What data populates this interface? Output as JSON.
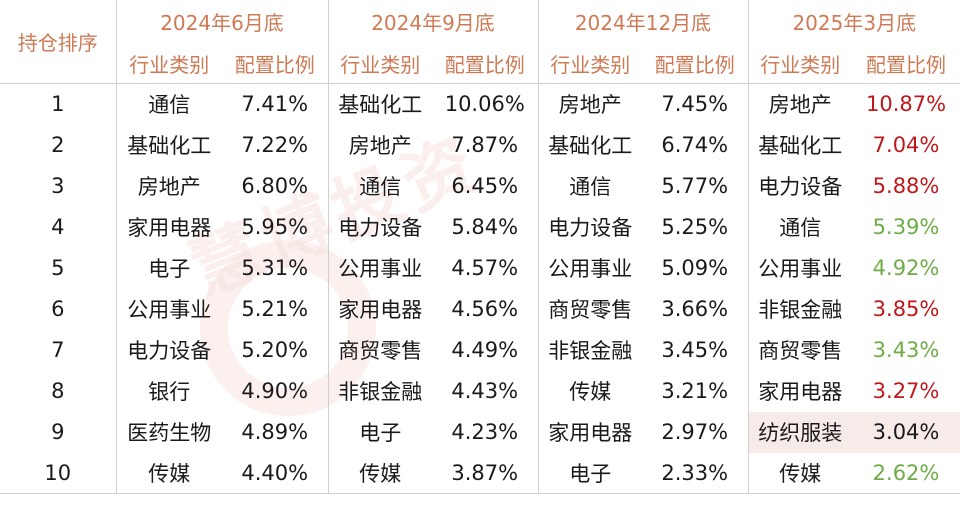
{
  "header": {
    "rank_label": "持仓排序",
    "industry_label": "行业类别",
    "ratio_label": "配置比例",
    "periods": [
      "2024年6月底",
      "2024年9月底",
      "2024年12月底",
      "2025年3月底"
    ]
  },
  "watermark": "慧博投资",
  "colors": {
    "header": "#cf7a55",
    "up": "#c0171b",
    "down": "#6fac46",
    "highlight": "#f7ebea"
  },
  "rows": [
    {
      "rank": "1",
      "p1": {
        "ind": "通信",
        "val": "7.41%"
      },
      "p2": {
        "ind": "基础化工",
        "val": "10.06%"
      },
      "p3": {
        "ind": "房地产",
        "val": "7.45%"
      },
      "p4": {
        "ind": "房地产",
        "val": "10.87%",
        "trend": "up"
      }
    },
    {
      "rank": "2",
      "p1": {
        "ind": "基础化工",
        "val": "7.22%"
      },
      "p2": {
        "ind": "房地产",
        "val": "7.87%"
      },
      "p3": {
        "ind": "基础化工",
        "val": "6.74%"
      },
      "p4": {
        "ind": "基础化工",
        "val": "7.04%",
        "trend": "up"
      }
    },
    {
      "rank": "3",
      "p1": {
        "ind": "房地产",
        "val": "6.80%"
      },
      "p2": {
        "ind": "通信",
        "val": "6.45%"
      },
      "p3": {
        "ind": "通信",
        "val": "5.77%"
      },
      "p4": {
        "ind": "电力设备",
        "val": "5.88%",
        "trend": "up"
      }
    },
    {
      "rank": "4",
      "p1": {
        "ind": "家用电器",
        "val": "5.95%"
      },
      "p2": {
        "ind": "电力设备",
        "val": "5.84%"
      },
      "p3": {
        "ind": "电力设备",
        "val": "5.25%"
      },
      "p4": {
        "ind": "通信",
        "val": "5.39%",
        "trend": "down"
      }
    },
    {
      "rank": "5",
      "p1": {
        "ind": "电子",
        "val": "5.31%"
      },
      "p2": {
        "ind": "公用事业",
        "val": "4.57%"
      },
      "p3": {
        "ind": "公用事业",
        "val": "5.09%"
      },
      "p4": {
        "ind": "公用事业",
        "val": "4.92%",
        "trend": "down"
      }
    },
    {
      "rank": "6",
      "p1": {
        "ind": "公用事业",
        "val": "5.21%"
      },
      "p2": {
        "ind": "家用电器",
        "val": "4.56%"
      },
      "p3": {
        "ind": "商贸零售",
        "val": "3.66%"
      },
      "p4": {
        "ind": "非银金融",
        "val": "3.85%",
        "trend": "up"
      }
    },
    {
      "rank": "7",
      "p1": {
        "ind": "电力设备",
        "val": "5.20%"
      },
      "p2": {
        "ind": "商贸零售",
        "val": "4.49%"
      },
      "p3": {
        "ind": "非银金融",
        "val": "3.45%"
      },
      "p4": {
        "ind": "商贸零售",
        "val": "3.43%",
        "trend": "down"
      }
    },
    {
      "rank": "8",
      "p1": {
        "ind": "银行",
        "val": "4.90%"
      },
      "p2": {
        "ind": "非银金融",
        "val": "4.43%"
      },
      "p3": {
        "ind": "传媒",
        "val": "3.21%"
      },
      "p4": {
        "ind": "家用电器",
        "val": "3.27%",
        "trend": "up"
      }
    },
    {
      "rank": "9",
      "p1": {
        "ind": "医药生物",
        "val": "4.89%"
      },
      "p2": {
        "ind": "电子",
        "val": "4.23%"
      },
      "p3": {
        "ind": "家用电器",
        "val": "2.97%"
      },
      "p4": {
        "ind": "纺织服装",
        "val": "3.04%",
        "trend": "new"
      }
    },
    {
      "rank": "10",
      "p1": {
        "ind": "传媒",
        "val": "4.40%"
      },
      "p2": {
        "ind": "传媒",
        "val": "3.87%"
      },
      "p3": {
        "ind": "电子",
        "val": "2.33%"
      },
      "p4": {
        "ind": "传媒",
        "val": "2.62%",
        "trend": "down"
      }
    }
  ]
}
